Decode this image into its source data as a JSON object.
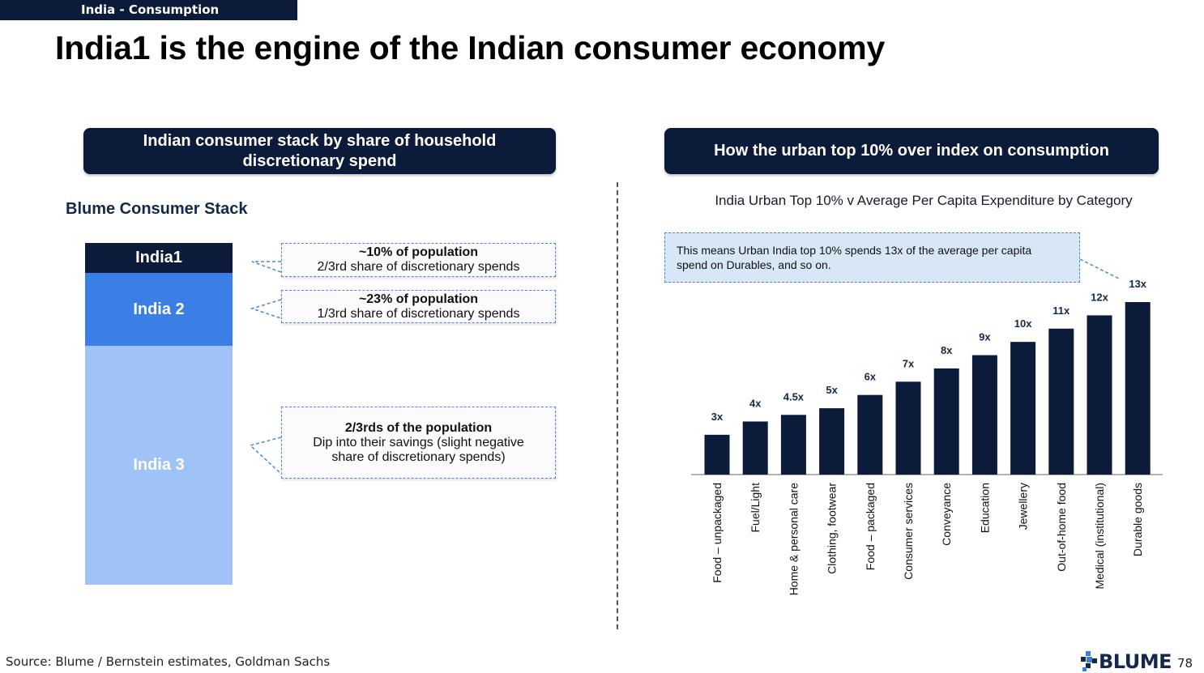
{
  "header": {
    "section_tag": "India - Consumption",
    "title": "India1 is the engine of the Indian consumer economy"
  },
  "left_panel": {
    "heading_line1": "Indian consumer stack by share of household",
    "heading_line2": "discretionary spend",
    "stack_title": "Blume Consumer Stack",
    "segments": [
      {
        "label": "India1",
        "color": "#0c1b3a"
      },
      {
        "label": "India 2",
        "color": "#3a7fe6"
      },
      {
        "label": "India 3",
        "color": "#9fc3f7"
      }
    ],
    "callouts": [
      {
        "bold": "~10% of population",
        "line2": "2/3rd share of discretionary spends"
      },
      {
        "bold": "~23% of population",
        "line2": "1/3rd share of discretionary spends"
      },
      {
        "bold": "2/3rds of the population",
        "line2": "Dip into their savings (slight negative",
        "line3": "share of discretionary spends)"
      }
    ]
  },
  "right_panel": {
    "heading": "How the urban top 10% over index on consumption",
    "note_line1": "This means Urban India top 10% spends 13x of the average per capita",
    "note_line2": "spend  on Durables, and so on."
  },
  "chart_data": {
    "type": "bar",
    "title": "India Urban Top 10% v Average Per Capita Expenditure by Category",
    "categories": [
      "Food – unpackaged",
      "Fuel/Light",
      "Home & personal care",
      "Clothing, footwear",
      "Food – packaged",
      "Consumer services",
      "Conveyance",
      "Education",
      "Jewellery",
      "Out-of-home food",
      "Medical (institutional)",
      "Durable goods"
    ],
    "values": [
      3,
      4,
      4.5,
      5,
      6,
      7,
      8,
      9,
      10,
      11,
      12,
      13
    ],
    "data_labels": [
      "3x",
      "4x",
      "4.5x",
      "5x",
      "6x",
      "7x",
      "8x",
      "9x",
      "10x",
      "11x",
      "12x",
      "13x"
    ],
    "ylim": [
      0,
      13
    ],
    "bar_color": "#0c1b3a",
    "grid": false,
    "xlabel": "",
    "ylabel": ""
  },
  "footer": {
    "source": "Source: Blume / Bernstein estimates, Goldman Sachs",
    "logo_text": "BLUME",
    "page_number": "78"
  }
}
